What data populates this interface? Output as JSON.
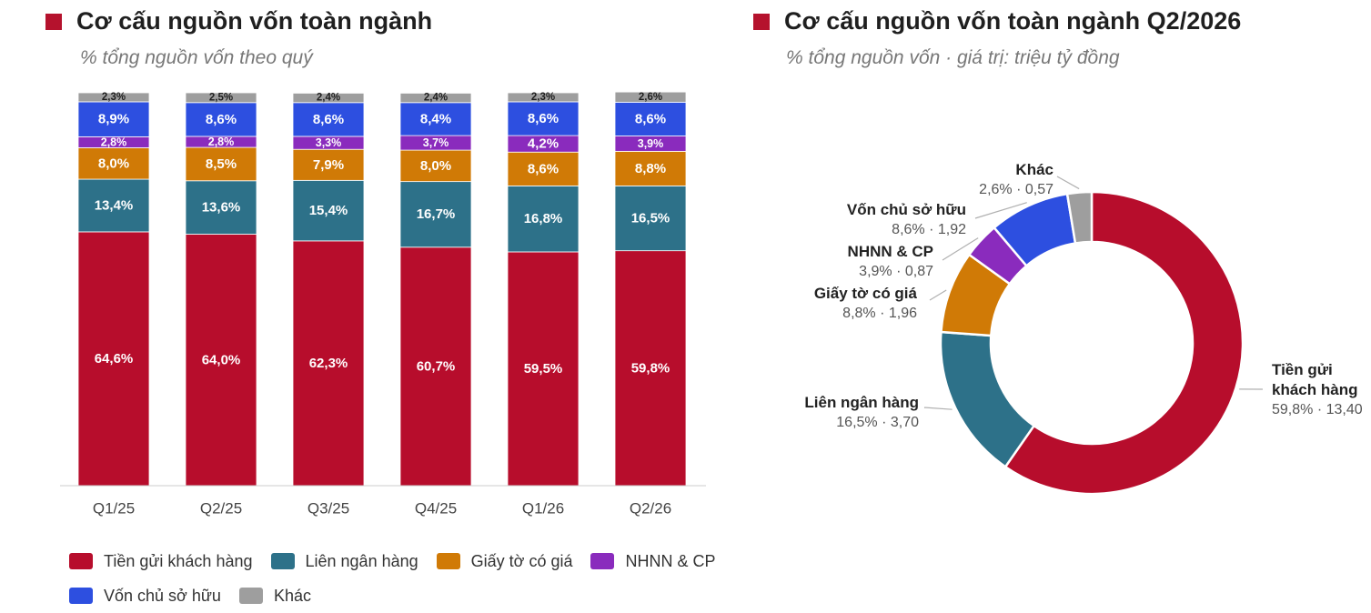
{
  "bar_panel": {
    "title": "Cơ cấu nguồn vốn toàn ngành",
    "subtitle": "% tổng nguồn vốn theo quý"
  },
  "donut_panel": {
    "title": "Cơ cấu nguồn vốn toàn ngành Q2/2026",
    "subtitle": "% tổng nguồn vốn · giá trị: triệu tỷ đồng"
  },
  "chart_data": [
    {
      "type": "bar",
      "stacked": true,
      "title": "Cơ cấu nguồn vốn toàn ngành",
      "subtitle": "% tổng nguồn vốn theo quý",
      "categories": [
        "Q1/25",
        "Q2/25",
        "Q3/25",
        "Q4/25",
        "Q1/26",
        "Q2/26"
      ],
      "ylim": [
        0,
        100
      ],
      "grid": false,
      "legend_position": "bottom",
      "series": [
        {
          "name": "Tiền gửi khách hàng",
          "color": "#b70d2c",
          "values": [
            64.6,
            64.0,
            62.3,
            60.7,
            59.5,
            59.8
          ],
          "labels": [
            "64,6%",
            "64,0%",
            "62,3%",
            "60,7%",
            "59,5%",
            "59,8%"
          ]
        },
        {
          "name": "Liên ngân hàng",
          "color": "#2d7189",
          "values": [
            13.4,
            13.6,
            15.4,
            16.7,
            16.8,
            16.5
          ],
          "labels": [
            "13,4%",
            "13,6%",
            "15,4%",
            "16,7%",
            "16,8%",
            "16,5%"
          ]
        },
        {
          "name": "Giấy tờ có giá",
          "color": "#d07a06",
          "values": [
            8.0,
            8.5,
            7.9,
            8.0,
            8.6,
            8.8
          ],
          "labels": [
            "8,0%",
            "8,5%",
            "7,9%",
            "8,0%",
            "8,6%",
            "8,8%"
          ]
        },
        {
          "name": "NHNN & CP",
          "color": "#8a2bbd",
          "values": [
            2.8,
            2.8,
            3.3,
            3.7,
            4.2,
            3.9
          ],
          "labels": [
            "2,8%",
            "2,8%",
            "3,3%",
            "3,7%",
            "4,2%",
            "3,9%"
          ]
        },
        {
          "name": "Vốn chủ sở hữu",
          "color": "#2d4fe0",
          "values": [
            8.9,
            8.6,
            8.6,
            8.4,
            8.6,
            8.6
          ],
          "labels": [
            "8,9%",
            "8,6%",
            "8,6%",
            "8,4%",
            "8,6%",
            "8,6%"
          ]
        },
        {
          "name": "Khác",
          "color": "#9e9e9e",
          "values": [
            2.3,
            2.5,
            2.4,
            2.4,
            2.3,
            2.6
          ],
          "labels": [
            "2,3%",
            "2,5%",
            "2,4%",
            "2,4%",
            "2,3%",
            "2,6%"
          ]
        }
      ]
    },
    {
      "type": "pie",
      "donut": true,
      "title": "Cơ cấu nguồn vốn toàn ngành Q2/2026",
      "subtitle": "% tổng nguồn vốn · giá trị: triệu tỷ đồng",
      "slices": [
        {
          "name": "Tiền gửi khách hàng",
          "name_lines": [
            "Tiền gửi",
            "khách hàng"
          ],
          "percent": 59.8,
          "value": 13.4,
          "detail": "59,8% · 13,40",
          "color": "#b70d2c"
        },
        {
          "name": "Liên ngân hàng",
          "name_lines": [
            "Liên ngân hàng"
          ],
          "percent": 16.5,
          "value": 3.7,
          "detail": "16,5% · 3,70",
          "color": "#2d7189"
        },
        {
          "name": "Giấy tờ có giá",
          "name_lines": [
            "Giấy tờ có giá"
          ],
          "percent": 8.8,
          "value": 1.96,
          "detail": "8,8% · 1,96",
          "color": "#d07a06"
        },
        {
          "name": "NHNN & CP",
          "name_lines": [
            "NHNN & CP"
          ],
          "percent": 3.9,
          "value": 0.87,
          "detail": "3,9% · 0,87",
          "color": "#8a2bbd"
        },
        {
          "name": "Vốn chủ sở hữu",
          "name_lines": [
            "Vốn chủ sở hữu"
          ],
          "percent": 8.6,
          "value": 1.92,
          "detail": "8,6% · 1,92",
          "color": "#2d4fe0"
        },
        {
          "name": "Khác",
          "name_lines": [
            "Khác"
          ],
          "percent": 2.6,
          "value": 0.57,
          "detail": "2,6% · 0,57",
          "color": "#9e9e9e"
        }
      ]
    }
  ]
}
